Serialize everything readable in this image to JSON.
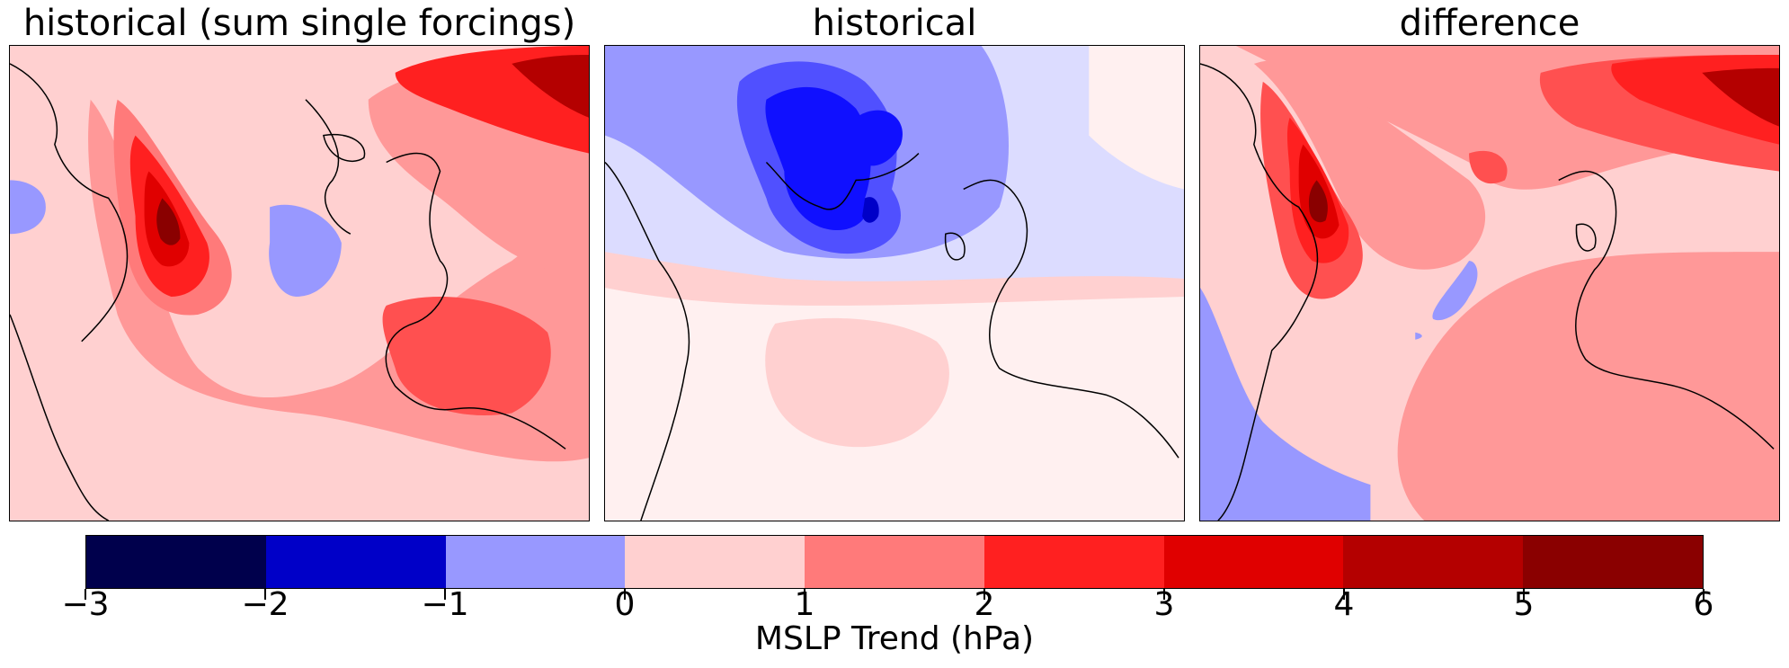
{
  "panels": [
    {
      "title": "historical (sum single forcings)"
    },
    {
      "title": "historical"
    },
    {
      "title": "difference"
    }
  ],
  "colorbar": {
    "label": "MSLP Trend (hPa)",
    "ticks": [
      "−3",
      "−2",
      "−1",
      "0",
      "1",
      "2",
      "3",
      "4",
      "5",
      "6"
    ],
    "range": [
      -3,
      6
    ],
    "colors": [
      "#00004c",
      "#0000c8",
      "#9898ff",
      "#ffd0d0",
      "#ff7a7a",
      "#ff2020",
      "#e00000",
      "#b40000",
      "#8a0000"
    ]
  }
}
